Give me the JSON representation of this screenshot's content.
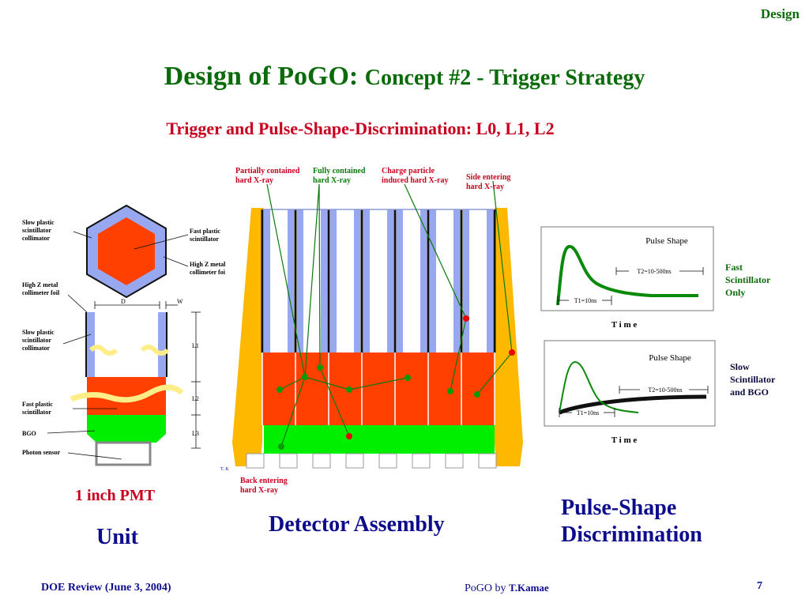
{
  "header": {
    "section_tag": "Design",
    "title_main": "Design of PoGO:",
    "title_sub": "Concept #2 - Trigger Strategy",
    "subtitle": "Trigger and Pulse-Shape-Discrimination: L0, L1, L2"
  },
  "unit_diagram": {
    "labels": {
      "slow_collimator_top_1": "Slow plastic",
      "slow_collimator_top_2": "scintillator",
      "slow_collimator_top_3": "collimator",
      "fast_plastic_top_1": "Fast plastic",
      "fast_plastic_top_2": "scintillator",
      "high_z_right_1": "High Z metal",
      "high_z_right_2": "collimeter foi",
      "high_z_left_1": "High Z metal",
      "high_z_left_2": "collimeter foil",
      "slow_collimator_side_1": "Slow plastic",
      "slow_collimator_side_2": "scintillator",
      "slow_collimator_side_3": "collimator",
      "fast_plastic_side_1": "Fast plastic",
      "fast_plastic_side_2": "scintillator",
      "bgo": "BGO",
      "photon_sensor": "Photon sensor",
      "dim_d": "D",
      "dim_w": "W",
      "dim_l1": "L1",
      "dim_l2": "L2",
      "dim_l3": "L3"
    },
    "pmt_label": "1 inch PMT",
    "caption": "Unit"
  },
  "detector_assembly": {
    "labels": {
      "partially_1": "Partially contained",
      "partially_2": "hard X-ray",
      "fully_1": "Fully contained",
      "fully_2": "hard X-ray",
      "charge_1": "Charge particle",
      "charge_2": "induced hard X-ray",
      "side_1": "Side entering",
      "side_2": "hard X-ray",
      "back_1": "Back entering",
      "back_2": "hard X-ray",
      "corner_mark": "T. K"
    },
    "caption": "Detector Assembly"
  },
  "pulse_shape": {
    "fast": {
      "plot_title": "Pulse Shape",
      "t2": "T2=10-500ns",
      "t1": "T1=10ns",
      "xlabel": "T i m e",
      "side_1": "Fast",
      "side_2": "Scintillator",
      "side_3": "Only"
    },
    "slow": {
      "plot_title": "Pulse Shape",
      "t2": "T2=10-500ns",
      "t1": "T1=10ns",
      "xlabel": "T i m e",
      "side_1": "Slow",
      "side_2": "Scintillator",
      "side_3": "and BGO"
    },
    "caption_1": "Pulse-Shape",
    "caption_2": "Discrimination"
  },
  "footer": {
    "left": "DOE Review (June 3, 2004)",
    "center_prefix": "PoGO by",
    "center_author": "T.Kamae",
    "page_number": "7"
  },
  "colors": {
    "title_green": "#0b6b0b",
    "subtitle_red": "#c8001e",
    "caption_navy": "#0c0c8c",
    "fast_scint": "#ff4000",
    "bgo_green": "#00ee00",
    "slow_scint": "#ffb800",
    "collimator_blue": "#98a8f0"
  }
}
